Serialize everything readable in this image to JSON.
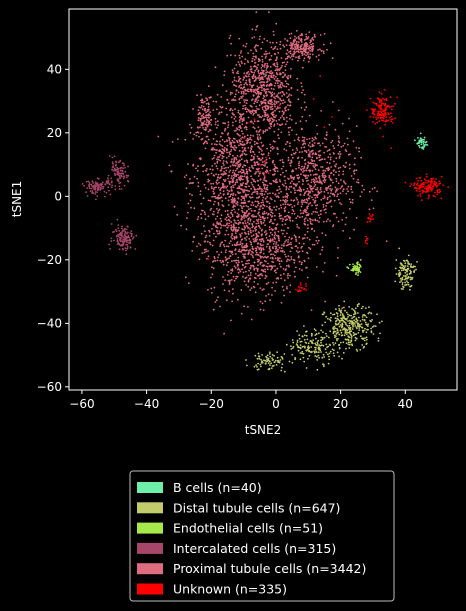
{
  "chart_data": {
    "type": "scatter",
    "title": "",
    "xlabel": "tSNE2",
    "ylabel": "tSNE1",
    "xlim": [
      -64,
      56
    ],
    "ylim": [
      -61,
      59
    ],
    "xticks": [
      -60,
      -40,
      -20,
      0,
      20,
      40
    ],
    "yticks": [
      -60,
      -40,
      -20,
      0,
      20,
      40
    ],
    "grid": false,
    "legend_position": "below",
    "background": "#000000",
    "series": [
      {
        "name": "B cells (n=40)",
        "color": "#6ef0a8",
        "n": 40,
        "clusters": [
          {
            "cx": 45,
            "cy": 17,
            "sx": 0.8,
            "sy": 1.0,
            "frac": 1
          }
        ]
      },
      {
        "name": "Distal tubule cells (n=647)",
        "color": "#c2cc6a",
        "n": 647,
        "clusters": [
          {
            "cx": 23,
            "cy": -41,
            "sx": 3.8,
            "sy": 3.2,
            "frac": 0.45
          },
          {
            "cx": 12,
            "cy": -47,
            "sx": 4.0,
            "sy": 2.6,
            "frac": 0.25
          },
          {
            "cx": -2,
            "cy": -52,
            "sx": 3.0,
            "sy": 1.5,
            "frac": 0.12
          },
          {
            "cx": 40,
            "cy": -24,
            "sx": 1.5,
            "sy": 2.5,
            "frac": 0.18
          }
        ]
      },
      {
        "name": "Endothelial cells (n=51)",
        "color": "#a7e84a",
        "n": 51,
        "clusters": [
          {
            "cx": 25,
            "cy": -23,
            "sx": 1.0,
            "sy": 0.9,
            "frac": 1
          }
        ]
      },
      {
        "name": "Intercalated cells (n=315)",
        "color": "#a8466a",
        "n": 315,
        "clusters": [
          {
            "cx": -49,
            "cy": 7,
            "sx": 1.6,
            "sy": 2.0,
            "frac": 0.3
          },
          {
            "cx": -55,
            "cy": 3,
            "sx": 2.0,
            "sy": 1.2,
            "frac": 0.3
          },
          {
            "cx": -47,
            "cy": -13,
            "sx": 1.8,
            "sy": 2.0,
            "frac": 0.4
          }
        ]
      },
      {
        "name": "Proximal tubule cells (n=3442)",
        "color": "#e06c80",
        "n": 3442,
        "clusters": [
          {
            "cx": -12,
            "cy": 5,
            "sx": 7.0,
            "sy": 12.0,
            "frac": 0.3
          },
          {
            "cx": 12,
            "cy": 5,
            "sx": 6.5,
            "sy": 8.5,
            "frac": 0.18
          },
          {
            "cx": -6,
            "cy": -18,
            "sx": 7.5,
            "sy": 7.0,
            "frac": 0.16
          },
          {
            "cx": -4,
            "cy": 34,
            "sx": 5.0,
            "sy": 7.5,
            "frac": 0.2
          },
          {
            "cx": 8,
            "cy": 47,
            "sx": 3.0,
            "sy": 2.0,
            "frac": 0.06
          },
          {
            "cx": -22,
            "cy": 25,
            "sx": 1.5,
            "sy": 3.5,
            "frac": 0.03
          },
          {
            "cx": 0,
            "cy": -5,
            "sx": 8.0,
            "sy": 10.0,
            "frac": 0.07
          }
        ]
      },
      {
        "name": "Unknown (n=335)",
        "color": "#ff0000",
        "n": 335,
        "clusters": [
          {
            "cx": 33,
            "cy": 27,
            "sx": 1.8,
            "sy": 2.4,
            "frac": 0.42
          },
          {
            "cx": 47,
            "cy": 3,
            "sx": 2.3,
            "sy": 1.5,
            "frac": 0.42
          },
          {
            "cx": 29,
            "cy": -7,
            "sx": 0.7,
            "sy": 0.6,
            "frac": 0.04
          },
          {
            "cx": 8,
            "cy": -29,
            "sx": 0.8,
            "sy": 0.8,
            "frac": 0.05
          },
          {
            "cx": 28,
            "cy": -14,
            "sx": 0.4,
            "sy": 0.6,
            "frac": 0.02
          },
          {
            "cx": 0,
            "cy": 10,
            "sx": 10.0,
            "sy": 15.0,
            "frac": 0.05
          }
        ]
      }
    ]
  }
}
